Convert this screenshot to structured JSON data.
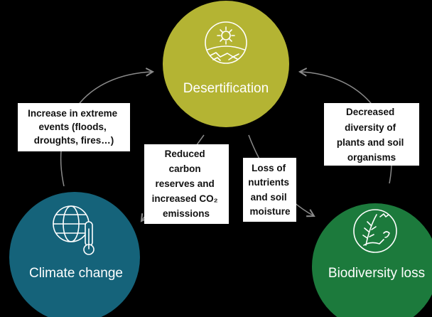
{
  "nodes": [
    {
      "label": "Desertification"
    },
    {
      "label": "Climate change"
    },
    {
      "label": "Biodiversity loss"
    }
  ],
  "boxes": [
    {
      "lines": [
        "Increase in extreme",
        "events (floods,",
        "droughts, fires…)"
      ]
    },
    {
      "lines": [
        "Reduced",
        "carbon",
        "reserves and",
        "increased CO₂",
        "emissions"
      ]
    },
    {
      "lines": [
        "Loss of",
        "nutrients",
        "and soil",
        "moisture"
      ]
    },
    {
      "lines": [
        "Decreased",
        "diversity of",
        "plants and soil",
        "organisms"
      ]
    }
  ]
}
